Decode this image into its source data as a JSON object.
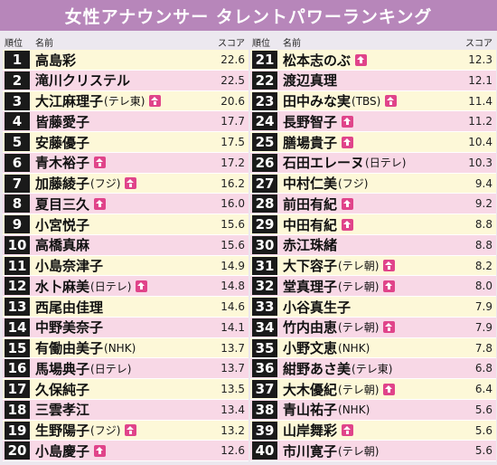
{
  "chart_data": {
    "type": "table",
    "title": "女性アナウンサー タレントパワーランキング",
    "columns": {
      "rank": "順位",
      "name": "名前",
      "score": "スコア"
    },
    "up_icon": "up-arrow-icon",
    "colors": {
      "title_bg": "#b786ba",
      "row_odd": "#fdf8d8",
      "row_even": "#f8d8e6",
      "up_icon": "#e0448a",
      "rank_box": "#1a1a1a"
    },
    "rows": [
      {
        "rank": "1",
        "name": "高島彩",
        "affil": "",
        "score": "22.6",
        "up": false
      },
      {
        "rank": "2",
        "name": "滝川クリステル",
        "affil": "",
        "score": "22.5",
        "up": false
      },
      {
        "rank": "3",
        "name": "大江麻理子",
        "affil": "(テレ東)",
        "score": "20.6",
        "up": true
      },
      {
        "rank": "4",
        "name": "皆藤愛子",
        "affil": "",
        "score": "17.7",
        "up": false
      },
      {
        "rank": "5",
        "name": "安藤優子",
        "affil": "",
        "score": "17.5",
        "up": false
      },
      {
        "rank": "6",
        "name": "青木裕子",
        "affil": "",
        "score": "17.2",
        "up": true
      },
      {
        "rank": "7",
        "name": "加藤綾子",
        "affil": "(フジ)",
        "score": "16.2",
        "up": true
      },
      {
        "rank": "8",
        "name": "夏目三久",
        "affil": "",
        "score": "16.0",
        "up": true
      },
      {
        "rank": "9",
        "name": "小宮悦子",
        "affil": "",
        "score": "15.6",
        "up": false
      },
      {
        "rank": "10",
        "name": "高橋真麻",
        "affil": "",
        "score": "15.6",
        "up": false
      },
      {
        "rank": "11",
        "name": "小島奈津子",
        "affil": "",
        "score": "14.9",
        "up": false
      },
      {
        "rank": "12",
        "name": "水卜麻美",
        "affil": "(日テレ)",
        "score": "14.8",
        "up": true
      },
      {
        "rank": "13",
        "name": "西尾由佳理",
        "affil": "",
        "score": "14.6",
        "up": false
      },
      {
        "rank": "14",
        "name": "中野美奈子",
        "affil": "",
        "score": "14.1",
        "up": false
      },
      {
        "rank": "15",
        "name": "有働由美子",
        "affil": "(NHK)",
        "score": "13.7",
        "up": false
      },
      {
        "rank": "16",
        "name": "馬場典子",
        "affil": "(日テレ)",
        "score": "13.7",
        "up": false
      },
      {
        "rank": "17",
        "name": "久保純子",
        "affil": "",
        "score": "13.5",
        "up": false
      },
      {
        "rank": "18",
        "name": "三雲孝江",
        "affil": "",
        "score": "13.4",
        "up": false
      },
      {
        "rank": "19",
        "name": "生野陽子",
        "affil": "(フジ)",
        "score": "13.2",
        "up": true
      },
      {
        "rank": "20",
        "name": "小島慶子",
        "affil": "",
        "score": "12.6",
        "up": true
      },
      {
        "rank": "21",
        "name": "松本志のぶ",
        "affil": "",
        "score": "12.3",
        "up": true
      },
      {
        "rank": "22",
        "name": "渡辺真理",
        "affil": "",
        "score": "12.1",
        "up": false
      },
      {
        "rank": "23",
        "name": "田中みな実",
        "affil": "(TBS)",
        "score": "11.4",
        "up": true
      },
      {
        "rank": "24",
        "name": "長野智子",
        "affil": "",
        "score": "11.2",
        "up": true
      },
      {
        "rank": "25",
        "name": "膳場貴子",
        "affil": "",
        "score": "10.4",
        "up": true
      },
      {
        "rank": "26",
        "name": "石田エレーヌ",
        "affil": "(日テレ)",
        "score": "10.3",
        "up": false
      },
      {
        "rank": "27",
        "name": "中村仁美",
        "affil": "(フジ)",
        "score": "9.4",
        "up": false
      },
      {
        "rank": "28",
        "name": "前田有紀",
        "affil": "",
        "score": "9.2",
        "up": true
      },
      {
        "rank": "29",
        "name": "中田有紀",
        "affil": "",
        "score": "8.8",
        "up": true
      },
      {
        "rank": "30",
        "name": "赤江珠緒",
        "affil": "",
        "score": "8.8",
        "up": false
      },
      {
        "rank": "31",
        "name": "大下容子",
        "affil": "(テレ朝)",
        "score": "8.2",
        "up": true
      },
      {
        "rank": "32",
        "name": "堂真理子",
        "affil": "(テレ朝)",
        "score": "8.0",
        "up": true
      },
      {
        "rank": "33",
        "name": "小谷真生子",
        "affil": "",
        "score": "7.9",
        "up": false
      },
      {
        "rank": "34",
        "name": "竹内由恵",
        "affil": "(テレ朝)",
        "score": "7.9",
        "up": true
      },
      {
        "rank": "35",
        "name": "小野文恵",
        "affil": "(NHK)",
        "score": "7.8",
        "up": false
      },
      {
        "rank": "36",
        "name": "紺野あさ美",
        "affil": "(テレ東)",
        "score": "6.8",
        "up": false
      },
      {
        "rank": "37",
        "name": "大木優紀",
        "affil": "(テレ朝)",
        "score": "6.4",
        "up": true
      },
      {
        "rank": "38",
        "name": "青山祐子",
        "affil": "(NHK)",
        "score": "5.6",
        "up": false
      },
      {
        "rank": "39",
        "name": "山岸舞彩",
        "affil": "",
        "score": "5.6",
        "up": true
      },
      {
        "rank": "40",
        "name": "市川寛子",
        "affil": "(テレ朝)",
        "score": "5.6",
        "up": false
      }
    ]
  }
}
